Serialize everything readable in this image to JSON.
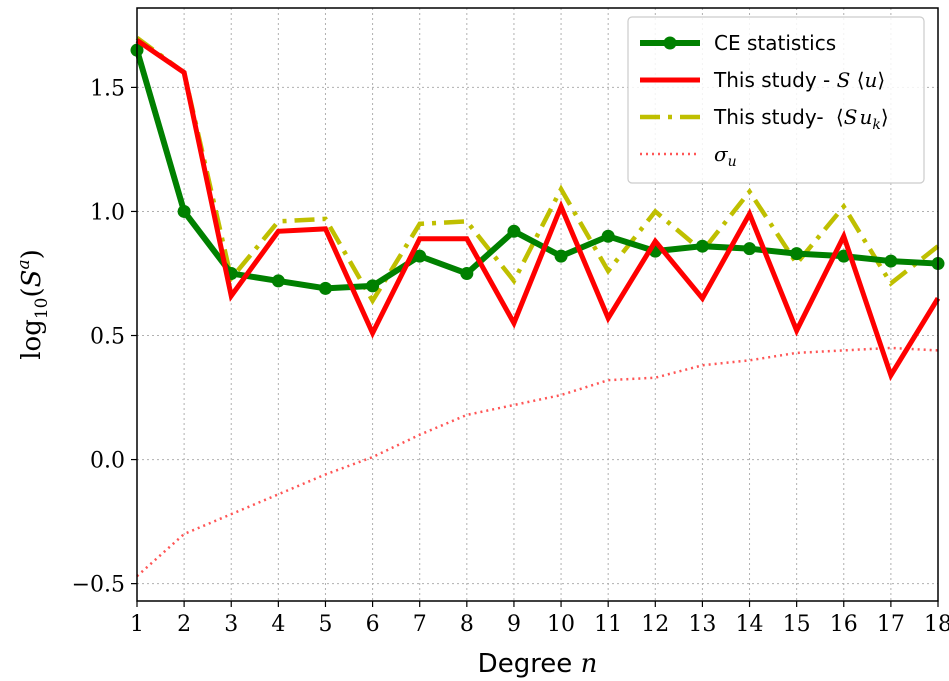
{
  "chart_data": {
    "type": "line",
    "x": [
      1,
      2,
      3,
      4,
      5,
      6,
      7,
      8,
      9,
      10,
      11,
      12,
      13,
      14,
      15,
      16,
      17,
      18
    ],
    "xlabel": "Degree n",
    "ylabel": "log10(S^a)",
    "xlim": [
      1,
      18
    ],
    "ylim": [
      -0.57,
      1.82
    ],
    "xticks": [
      1,
      2,
      3,
      4,
      5,
      6,
      7,
      8,
      9,
      10,
      11,
      12,
      13,
      14,
      15,
      16,
      17,
      18
    ],
    "yticks": [
      -0.5,
      0.0,
      0.5,
      1.0,
      1.5
    ],
    "ytick_labels": [
      "−0.5",
      "0.0",
      "0.5",
      "1.0",
      "1.5"
    ],
    "grid": true,
    "legend_position": "top-right",
    "series": [
      {
        "name": "CE statistics",
        "color": "#008000",
        "style": "solid-marker",
        "values": [
          1.65,
          1.0,
          0.75,
          0.72,
          0.69,
          0.7,
          0.82,
          0.75,
          0.92,
          0.82,
          0.9,
          0.84,
          0.86,
          0.85,
          0.83,
          0.82,
          0.8,
          0.79
        ]
      },
      {
        "name": "This study - S ⟨u⟩",
        "color": "#ff0000",
        "style": "solid",
        "values": [
          1.69,
          1.56,
          0.66,
          0.92,
          0.93,
          0.51,
          0.89,
          0.89,
          0.55,
          1.02,
          0.57,
          0.88,
          0.65,
          0.99,
          0.52,
          0.9,
          0.34,
          0.65
        ]
      },
      {
        "name": "This study- ⟨S u_k⟩",
        "color": "#bfbf00",
        "style": "dashdot",
        "values": [
          1.7,
          1.56,
          0.73,
          0.96,
          0.97,
          0.64,
          0.95,
          0.96,
          0.72,
          1.09,
          0.76,
          1.0,
          0.84,
          1.08,
          0.79,
          1.02,
          0.71,
          0.86
        ]
      },
      {
        "name": "σ_u",
        "color": "#ff5555",
        "style": "dotted",
        "values": [
          -0.47,
          -0.3,
          -0.22,
          -0.14,
          -0.06,
          0.01,
          0.1,
          0.18,
          0.22,
          0.26,
          0.32,
          0.33,
          0.38,
          0.4,
          0.43,
          0.44,
          0.45,
          0.44
        ]
      }
    ]
  }
}
